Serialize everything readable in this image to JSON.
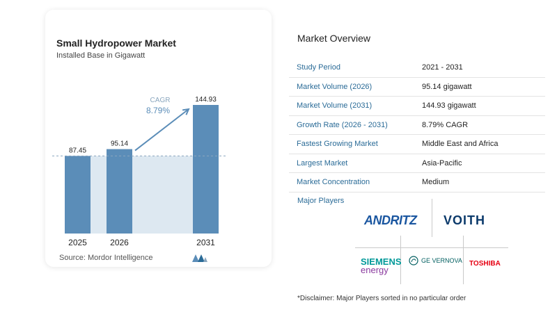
{
  "left_panel": {
    "title": "Small Hydropower Market",
    "subtitle": "Installed Base in Gigawatt",
    "source": "Source:  Mordor Intelligence",
    "cagr_label": "CAGR",
    "cagr_value": "8.79%"
  },
  "chart_data": {
    "type": "bar",
    "categories": [
      "2025",
      "2026",
      "2031"
    ],
    "values": [
      87.45,
      95.14,
      144.93
    ],
    "value_labels": [
      "87.45",
      "95.14",
      "144.93"
    ],
    "title": "Small Hydropower Market",
    "subtitle": "Installed Base in Gigawatt",
    "ylim": [
      0,
      150
    ],
    "annotations": [
      "CAGR",
      "8.79%"
    ],
    "grid": false,
    "colors": {
      "bar": "#5b8db8",
      "bar_light": "#dde8f1",
      "dashed_line": "#8aa6be",
      "arrow": "#5b8db8"
    }
  },
  "overview": {
    "title": "Market Overview",
    "rows": [
      {
        "key": "Study Period",
        "value": "2021 - 2031"
      },
      {
        "key": "Market Volume (2026)",
        "value": "95.14 gigawatt"
      },
      {
        "key": "Market Volume (2031)",
        "value": "144.93 gigawatt"
      },
      {
        "key": "Growth Rate (2026 - 2031)",
        "value": "8.79% CAGR"
      },
      {
        "key": "Fastest Growing Market",
        "value": "Middle East and Africa"
      },
      {
        "key": "Largest Market",
        "value": "Asia-Pacific"
      },
      {
        "key": "Market Concentration",
        "value": "Medium"
      }
    ],
    "players_title": "Major Players",
    "players": {
      "andritz": "ANDRITZ",
      "voith": "VOITH",
      "siemens_line1": "SIEMENS",
      "siemens_line2": "energy",
      "ge": "GE VERNOVA",
      "toshiba": "TOSHIBA"
    },
    "disclaimer": "*Disclaimer: Major Players sorted in no particular order"
  },
  "colors": {
    "accent": "#2a6b97",
    "andritz": "#1a56a0",
    "voith": "#0b3a6b",
    "siemens": "#009999",
    "ge": "#005e60",
    "toshiba": "#e60012"
  }
}
